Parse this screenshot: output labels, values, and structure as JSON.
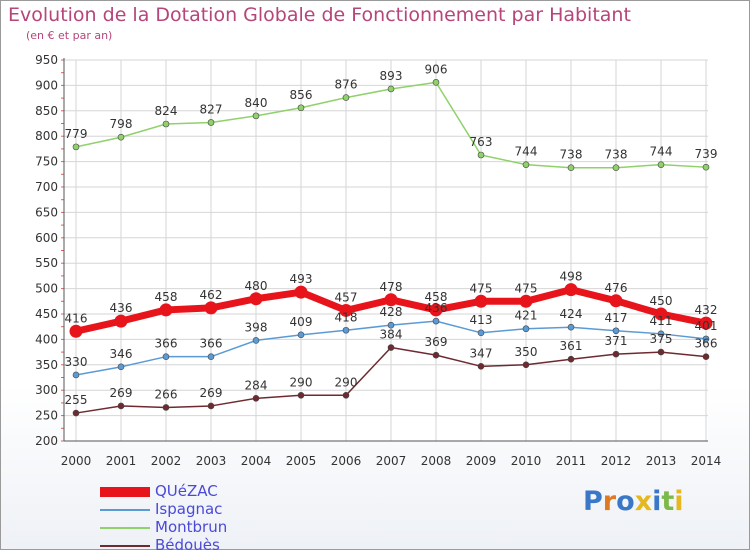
{
  "header": {
    "title": "Evolution de la Dotation Globale de Fonctionnement par Habitant",
    "subtitle": "(en € et par an)"
  },
  "logo": {
    "text": "Proxiti",
    "colors": [
      "#3a78c7",
      "#e07a22",
      "#3a78c7",
      "#e6b820",
      "#3a78c7",
      "#7cb84a",
      "#e6b820"
    ]
  },
  "chart_data": {
    "type": "line",
    "title": "Evolution de la Dotation Globale de Fonctionnement par Habitant",
    "subtitle": "(en € et par an)",
    "x": [
      2000,
      2001,
      2002,
      2003,
      2004,
      2005,
      2006,
      2007,
      2008,
      2009,
      2010,
      2011,
      2012,
      2013,
      2014
    ],
    "ylim": [
      200,
      950
    ],
    "yticks": [
      200,
      250,
      300,
      350,
      400,
      450,
      500,
      550,
      600,
      650,
      700,
      750,
      800,
      850,
      900,
      950
    ],
    "grid": true,
    "legend_position": "bottom-left",
    "series": [
      {
        "name": "QUéZAC",
        "color": "#e8141b",
        "values": [
          416,
          436,
          458,
          462,
          480,
          493,
          457,
          478,
          458,
          475,
          475,
          498,
          476,
          450,
          432
        ]
      },
      {
        "name": "Ispagnac",
        "color": "#5b9bd5",
        "values": [
          330,
          346,
          366,
          366,
          398,
          409,
          418,
          428,
          436,
          413,
          421,
          424,
          417,
          411,
          401
        ]
      },
      {
        "name": "Montbrun",
        "color": "#8fd16a",
        "values": [
          779,
          798,
          824,
          827,
          840,
          856,
          876,
          893,
          906,
          763,
          744,
          738,
          738,
          744,
          739
        ]
      },
      {
        "name": "Bédouès",
        "color": "#6e2a30",
        "values": [
          255,
          269,
          266,
          269,
          284,
          290,
          290,
          384,
          369,
          347,
          350,
          361,
          371,
          375,
          366
        ]
      }
    ]
  }
}
